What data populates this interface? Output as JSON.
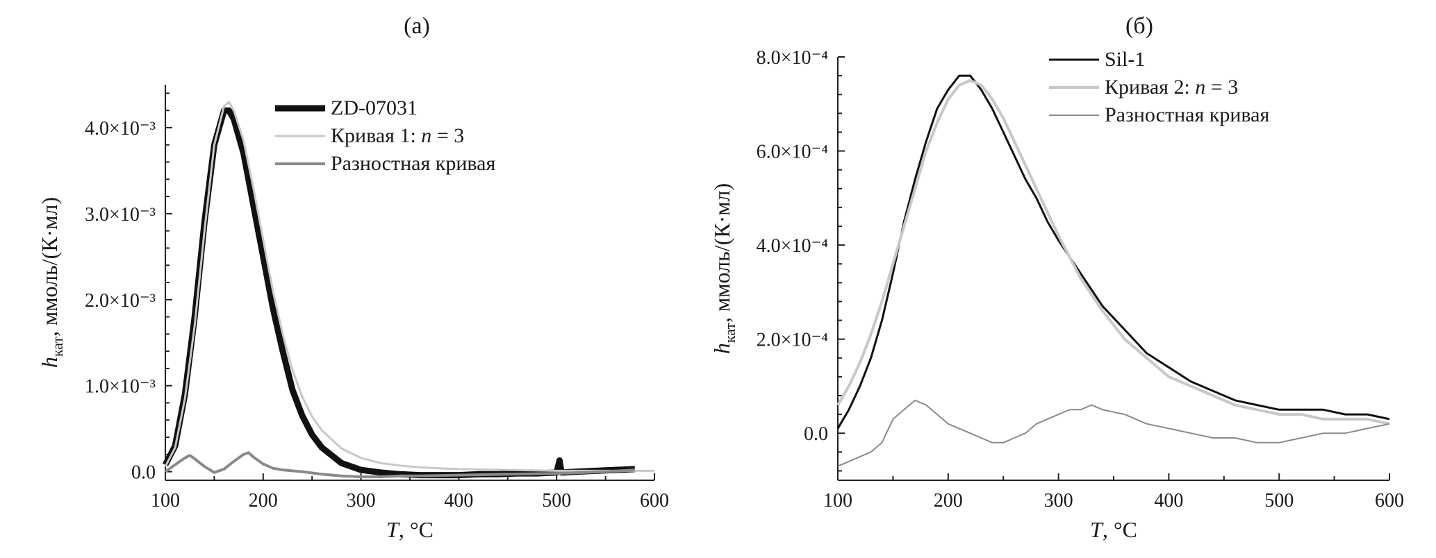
{
  "chart_data": [
    {
      "type": "line",
      "panel": "(a)",
      "xlabel": "T, °C",
      "ylabel": "h_кат, ммоль/(К·мл)",
      "ylabel_main": "h",
      "ylabel_sub": "кат",
      "ylabel_rest": ", ммоль/(К·мл)",
      "xlim": [
        100,
        600
      ],
      "ylim": [
        -0.0001,
        0.0045
      ],
      "x_ticks": [
        100,
        200,
        300,
        400,
        500,
        600
      ],
      "x_tick_labels": [
        "100",
        "200",
        "300",
        "400",
        "500",
        "600"
      ],
      "y_ticks": [
        0,
        0.001,
        0.002,
        0.003,
        0.004
      ],
      "y_tick_labels": [
        "0.0",
        "1.0×10⁻³",
        "2.0×10⁻³",
        "3.0×10⁻³",
        "4.0×10⁻³"
      ],
      "legend_position": "top-right",
      "series": [
        {
          "name": "ZD-07031",
          "color": "#111111",
          "x": [
            100,
            110,
            120,
            130,
            140,
            150,
            160,
            165,
            170,
            180,
            190,
            200,
            210,
            220,
            230,
            240,
            250,
            260,
            280,
            300,
            320,
            340,
            360,
            380,
            400,
            420,
            440,
            460,
            480,
            500,
            503,
            505,
            507,
            520,
            540,
            560,
            580
          ],
          "y": [
            8e-05,
            0.0003,
            0.0009,
            0.0018,
            0.0029,
            0.0038,
            0.0042,
            0.0042,
            0.0041,
            0.0037,
            0.0031,
            0.0025,
            0.0019,
            0.0014,
            0.00095,
            0.00065,
            0.00043,
            0.00028,
            0.0001,
            2e-05,
            -1e-05,
            -3e-05,
            -4e-05,
            -4e-05,
            -4e-05,
            -3e-05,
            -3e-05,
            -2e-05,
            -2e-05,
            -1e-05,
            0.00013,
            -1e-05,
            -1e-05,
            0.0,
            1e-05,
            2e-05,
            3e-05
          ]
        },
        {
          "name": "Кривая 1: n = 3",
          "name_prefix": "Кривая 1: ",
          "name_var": "n",
          "name_suffix": " = 3",
          "color": "#c8c8c8",
          "x": [
            100,
            110,
            120,
            130,
            140,
            150,
            160,
            165,
            170,
            180,
            190,
            200,
            210,
            220,
            230,
            240,
            250,
            260,
            280,
            300,
            320,
            340,
            360,
            380,
            400,
            450,
            500,
            550,
            600
          ],
          "y": [
            6e-05,
            0.00028,
            0.00085,
            0.0017,
            0.0028,
            0.0038,
            0.00425,
            0.0043,
            0.0042,
            0.00385,
            0.0033,
            0.0027,
            0.0021,
            0.0016,
            0.00118,
            0.00087,
            0.00064,
            0.00048,
            0.00027,
            0.00016,
            0.0001,
            7e-05,
            5e-05,
            4e-05,
            3e-05,
            2e-05,
            1e-05,
            1e-05,
            1e-05
          ]
        },
        {
          "name": "Разностная кривая",
          "color": "#8a8a8a",
          "x": [
            100,
            110,
            120,
            125,
            130,
            140,
            150,
            160,
            170,
            180,
            185,
            190,
            200,
            210,
            220,
            240,
            260,
            280,
            300,
            320,
            340,
            360,
            400,
            450,
            500,
            550,
            580
          ],
          "y": [
            0.0,
            8e-05,
            0.00016,
            0.00019,
            0.00015,
            6e-05,
            -1e-05,
            3e-05,
            0.00012,
            0.0002,
            0.00022,
            0.00017,
            9e-05,
            4e-05,
            2e-05,
            0.0,
            -3e-05,
            -5e-05,
            -6e-05,
            -6e-05,
            -5e-05,
            -5e-05,
            -4e-05,
            -3e-05,
            -2e-05,
            0.0,
            2e-05
          ]
        }
      ]
    },
    {
      "type": "line",
      "panel": "(б)",
      "xlabel": "T, °C",
      "ylabel": "h_кат, ммоль/(К·мл)",
      "ylabel_main": "h",
      "ylabel_sub": "кат",
      "ylabel_rest": ", ммоль/(К·мл)",
      "xlim": [
        100,
        600
      ],
      "ylim": [
        -0.0001,
        0.0008
      ],
      "x_ticks": [
        100,
        200,
        300,
        400,
        500,
        600
      ],
      "x_tick_labels": [
        "100",
        "200",
        "300",
        "400",
        "500",
        "600"
      ],
      "y_ticks": [
        0,
        0.0002,
        0.0004,
        0.0006,
        0.0008
      ],
      "y_tick_labels": [
        "0.0",
        "2.0×10⁻⁴",
        "4.0×10⁻⁴",
        "6.0×10⁻⁴",
        "8.0×10⁻⁴"
      ],
      "legend_position": "top-right",
      "series": [
        {
          "name": "Sil-1",
          "color": "#111111",
          "x": [
            100,
            110,
            120,
            130,
            140,
            150,
            160,
            170,
            180,
            190,
            200,
            210,
            220,
            230,
            240,
            250,
            260,
            270,
            280,
            290,
            300,
            320,
            340,
            360,
            380,
            400,
            420,
            440,
            460,
            480,
            500,
            520,
            540,
            560,
            580,
            600
          ],
          "y": [
            1e-05,
            5e-05,
            0.0001,
            0.00016,
            0.00024,
            0.00034,
            0.00045,
            0.00054,
            0.00062,
            0.00069,
            0.00073,
            0.00076,
            0.00076,
            0.00073,
            0.00069,
            0.00064,
            0.00059,
            0.00054,
            0.0005,
            0.00045,
            0.00041,
            0.00034,
            0.00027,
            0.00022,
            0.00017,
            0.00014,
            0.00011,
            9e-05,
            7e-05,
            6e-05,
            5e-05,
            5e-05,
            5e-05,
            4e-05,
            4e-05,
            3e-05
          ]
        },
        {
          "name": "Кривая 2: n = 3",
          "name_prefix": "Кривая 2: ",
          "name_var": "n",
          "name_suffix": " = 3",
          "color": "#c8c8c8",
          "x": [
            100,
            110,
            120,
            130,
            140,
            150,
            160,
            170,
            180,
            190,
            200,
            210,
            220,
            230,
            240,
            250,
            260,
            270,
            280,
            290,
            300,
            320,
            340,
            360,
            380,
            400,
            420,
            440,
            460,
            480,
            500,
            520,
            540,
            560,
            580,
            600
          ],
          "y": [
            6e-05,
            0.0001,
            0.00015,
            0.00021,
            0.00028,
            0.00036,
            0.00044,
            0.00052,
            0.0006,
            0.00066,
            0.00071,
            0.00074,
            0.00075,
            0.00074,
            0.00071,
            0.00067,
            0.00062,
            0.00057,
            0.00052,
            0.00047,
            0.00042,
            0.00033,
            0.00026,
            0.0002,
            0.00016,
            0.00012,
            0.0001,
            8e-05,
            6e-05,
            5e-05,
            4e-05,
            4e-05,
            3e-05,
            3e-05,
            3e-05,
            2e-05
          ]
        },
        {
          "name": "Разностная кривая",
          "color": "#8a8a8a",
          "x": [
            100,
            110,
            120,
            130,
            140,
            150,
            160,
            170,
            180,
            190,
            200,
            210,
            220,
            230,
            240,
            250,
            260,
            270,
            280,
            290,
            300,
            310,
            320,
            330,
            340,
            360,
            380,
            400,
            420,
            440,
            460,
            480,
            500,
            520,
            540,
            560,
            580,
            600
          ],
          "y": [
            -7e-05,
            -6e-05,
            -5e-05,
            -4e-05,
            -2e-05,
            3e-05,
            5e-05,
            7e-05,
            6e-05,
            4e-05,
            2e-05,
            1e-05,
            0.0,
            -1e-05,
            -2e-05,
            -2e-05,
            -1e-05,
            0.0,
            2e-05,
            3e-05,
            4e-05,
            5e-05,
            5e-05,
            6e-05,
            5e-05,
            4e-05,
            2e-05,
            1e-05,
            0.0,
            -1e-05,
            -1e-05,
            -2e-05,
            -2e-05,
            -1e-05,
            0.0,
            0.0,
            1e-05,
            2e-05
          ]
        }
      ]
    }
  ]
}
